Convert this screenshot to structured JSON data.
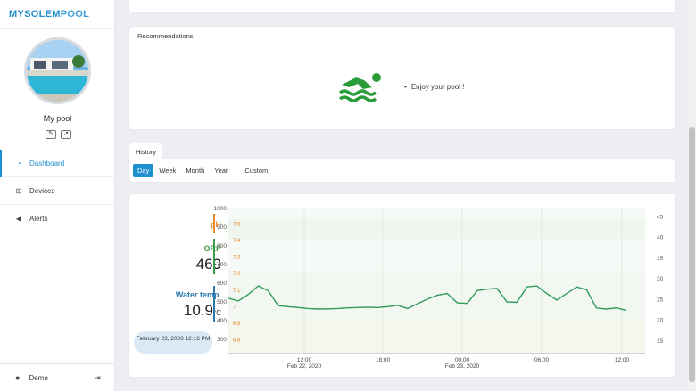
{
  "brand": {
    "part1": "MYSOLEM",
    "part2": "POOL"
  },
  "pool": {
    "name": "My pool",
    "edit_icon": "pencil-icon",
    "share_icon": "share-icon"
  },
  "nav": [
    {
      "label": "Dashboard",
      "icon": "gauge-icon",
      "active": true
    },
    {
      "label": "Devices",
      "icon": "sitemap-icon",
      "active": false
    },
    {
      "label": "Alerts",
      "icon": "bullhorn-icon",
      "active": false
    }
  ],
  "footer": {
    "user": "Demo",
    "user_icon": "user-icon",
    "logout_icon": "sign-out-icon"
  },
  "recommendations": {
    "title": "Recommendations",
    "items": [
      "Enjoy your pool !"
    ],
    "icon": "swimmer-icon"
  },
  "history": {
    "tab": "History",
    "periods": [
      "Day",
      "Week",
      "Month",
      "Year",
      "Custom"
    ],
    "active_period": "Day"
  },
  "metrics": {
    "ph": {
      "label": "pH",
      "value": "",
      "color": "#e5892a"
    },
    "orp": {
      "label": "ORP",
      "value": "469",
      "color": "#3a9a4a"
    },
    "temp": {
      "label": "Water temp.",
      "value": "10.9",
      "unit": "°C",
      "color": "#2a7ab0"
    }
  },
  "timestamp": "February 23, 2020 12:16 PM",
  "chart_data": {
    "type": "line",
    "x_ticks": [
      {
        "label": "12:00",
        "sublabel": "Feb 22, 2020"
      },
      {
        "label": "18:00",
        "sublabel": ""
      },
      {
        "label": "00:00",
        "sublabel": "Feb 23, 2020"
      },
      {
        "label": "06:00",
        "sublabel": ""
      },
      {
        "label": "12:00",
        "sublabel": ""
      }
    ],
    "orp_axis": {
      "ticks": [
        1000,
        900,
        800,
        700,
        600,
        500,
        400,
        300
      ],
      "ylim": [
        300,
        1000
      ],
      "color": "#3a9a4a"
    },
    "ph_axis": {
      "ticks": [
        7.5,
        7.4,
        7.3,
        7.2,
        7.1,
        7,
        6.9,
        6.8
      ],
      "ylim": [
        6.75,
        7.55
      ],
      "color": "#e5892a"
    },
    "temp_axis": {
      "ticks": [
        45,
        40,
        35,
        30,
        25,
        20,
        15
      ],
      "ylim": [
        12,
        47
      ],
      "color": "#2a7ab0"
    },
    "series": [
      {
        "name": "ORP",
        "color": "#2e9a5a",
        "values": [
          520,
          505,
          540,
          585,
          560,
          480,
          475,
          470,
          465,
          462,
          463,
          465,
          468,
          470,
          472,
          470,
          475,
          482,
          465,
          490,
          515,
          535,
          545,
          495,
          492,
          560,
          568,
          572,
          500,
          498,
          580,
          585,
          545,
          510,
          545,
          580,
          565,
          467,
          462,
          468,
          455
        ]
      }
    ],
    "grid": true
  }
}
